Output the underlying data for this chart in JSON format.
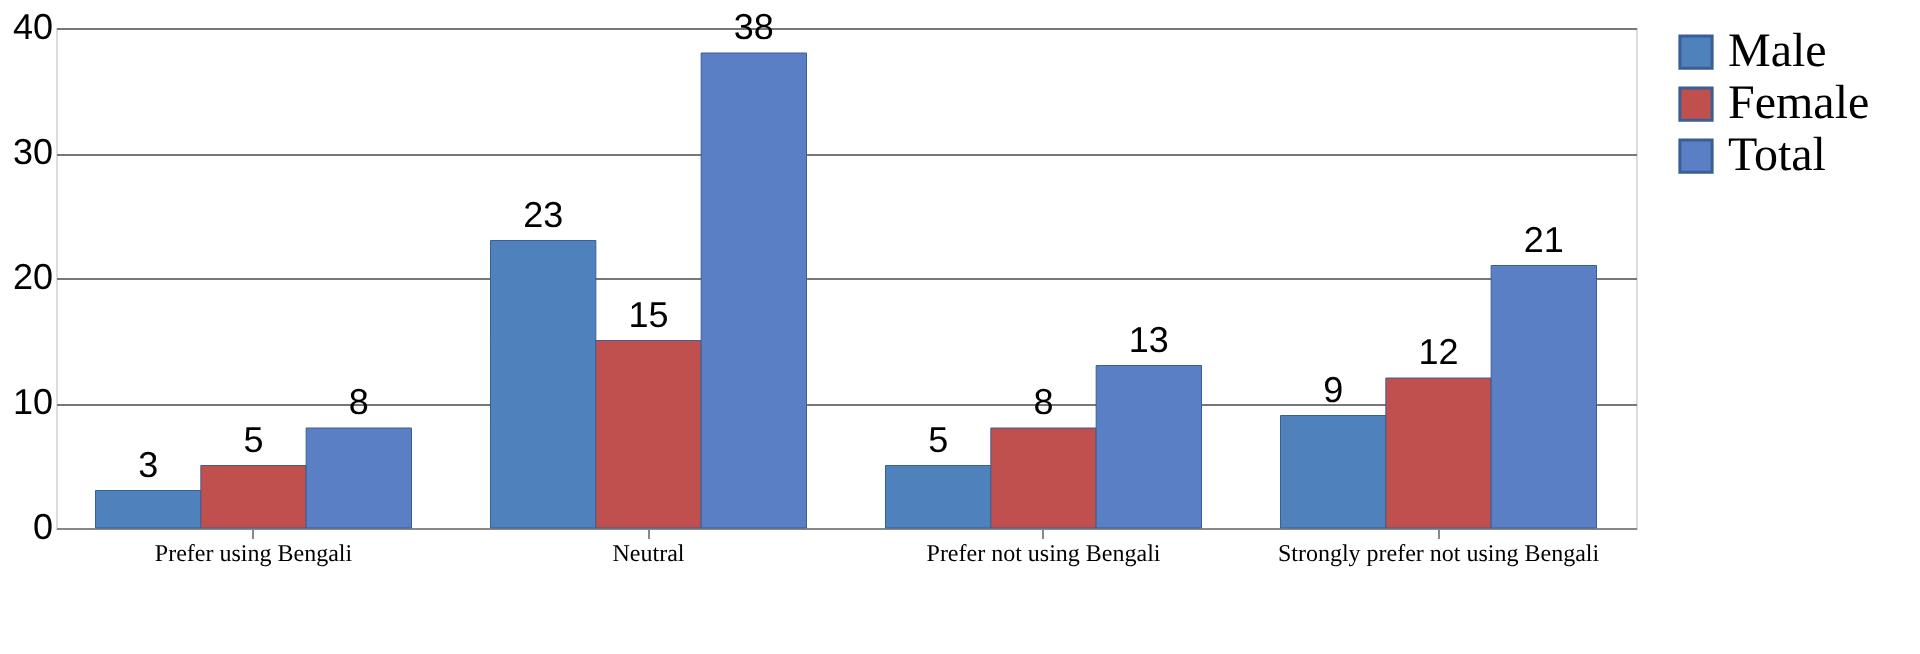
{
  "chart_data": {
    "type": "bar",
    "categories": [
      "Prefer using Bengali",
      "Neutral",
      "Prefer not using Bengali",
      "Strongly prefer not using Bengali"
    ],
    "series": [
      {
        "name": "Male",
        "color": "#4f81bd",
        "values": [
          3,
          23,
          5,
          9
        ]
      },
      {
        "name": "Female",
        "color": "#c0504d",
        "values": [
          5,
          15,
          8,
          12
        ]
      },
      {
        "name": "Total",
        "color": "#5b7fc4",
        "values": [
          8,
          38,
          13,
          21
        ]
      }
    ],
    "ylim": [
      0,
      40
    ],
    "yticks": [
      0,
      10,
      20,
      30,
      40
    ],
    "grid": "y",
    "legend": "right",
    "data_labels": true
  }
}
